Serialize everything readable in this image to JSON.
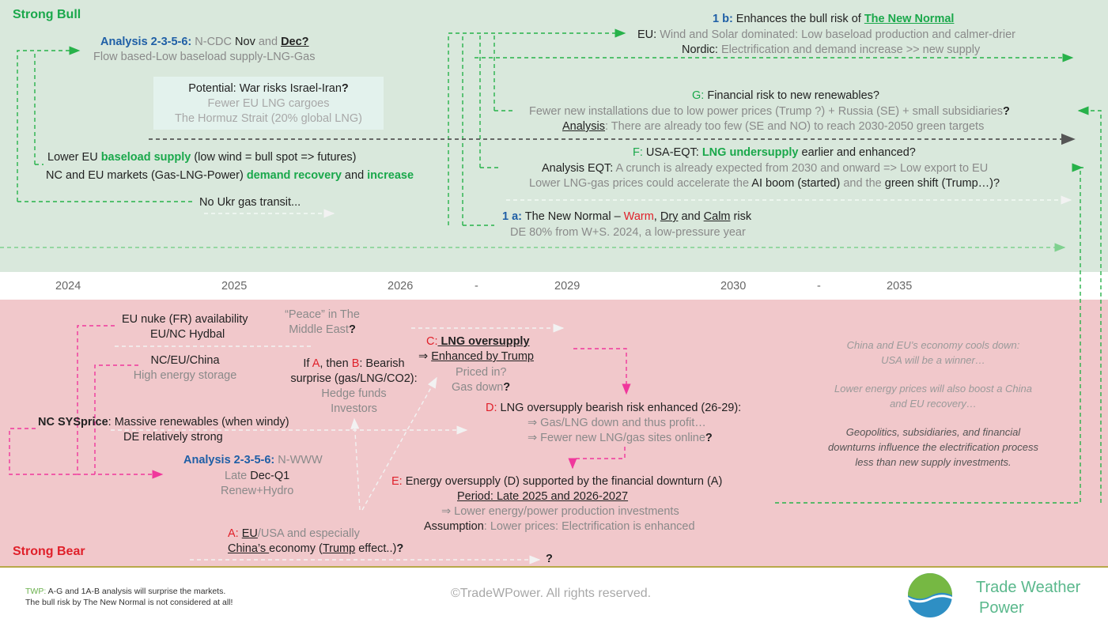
{
  "zones": {
    "bull_label": "Strong Bull",
    "bear_label": "Strong Bear"
  },
  "timeline": [
    "2024",
    "2025",
    "2026",
    "-",
    "2029",
    "2030",
    "-",
    "2035"
  ],
  "bull": {
    "analysis_ncdc": {
      "label": "Analysis 2-3-5-6:",
      "t1": " N-CDC ",
      "t2": "Nov",
      "t3": " and ",
      "t4": "Dec?",
      "line2": "Flow based-Low baseload supply-LNG-Gas"
    },
    "potential": {
      "line1": "Potential: War risks Israel-Iran",
      "q": "?",
      "line2": "Fewer EU LNG cargoes",
      "line3": "The Hormuz Strait (20% global LNG)"
    },
    "baseload": {
      "a": "Lower EU ",
      "b": "baseload supply",
      "c": " (low wind = bull spot =>  futures)",
      "d": "NC and EU markets (Gas-LNG-Power) ",
      "e": "demand recovery",
      "f": " and ",
      "g": "increase"
    },
    "ukr": "No Ukr gas transit...",
    "b1": {
      "label": "1 b:",
      "text": " Enhances the bull risk of ",
      "link": "The New Normal",
      "eu_label": "EU:",
      "eu_text": " Wind and Solar dominated: Low baseload production and calmer-drier",
      "nordic_label": "Nordic:",
      "nordic_text": " Electrification and demand increase >> new supply"
    },
    "g": {
      "label": "G:",
      "text": " Financial risk to new renewables?",
      "line2": "Fewer new installations due to low power prices (Trump ?) + Russia (SE) + small subsidiaries",
      "q": "?",
      "analysis": "Analysis",
      "line3": ": There are already too few (SE and NO) to reach 2030-2050 green targets"
    },
    "f": {
      "label": "F:",
      "t1": " USA-EQT: ",
      "t2": "LNG undersupply",
      "t3": " earlier and enhanced?",
      "l2a": "Analysis EQT:",
      "l2b": " A crunch is already expected from 2030 and onward => Low export to EU",
      "l3a": "Lower LNG-gas prices could accelerate the ",
      "l3b": "AI boom (started)",
      "l3c": " and the ",
      "l3d": "green shift (Trump…)?"
    },
    "a1": {
      "label": "1 a:",
      "t1": " The New Normal – ",
      "warm": "Warm",
      "t2": ", ",
      "dry": "Dry",
      "t3": " and ",
      "calm": "Calm",
      "t4": " risk",
      "line2": "DE 80% from W+S. 2024, a low-pressure year"
    }
  },
  "bear": {
    "nuke": {
      "line1": "EU nuke (FR) availability",
      "l2a": "EU/",
      "l2b": "NC Hydbal"
    },
    "peace": {
      "line1": "“Peace” in The",
      "line2a": "Middle East",
      "q": "?"
    },
    "storage": {
      "line1": "NC/EU/China",
      "line2": "High energy storage"
    },
    "ifab": {
      "a": "If ",
      "A": "A",
      "b": ", then ",
      "B": "B",
      "c": ": Bearish",
      "line2": "surprise (gas/LNG/CO2):",
      "line3": "Hedge funds",
      "line4": "Investors"
    },
    "c": {
      "label": "C:",
      "title": " LNG oversupply",
      "line2a": "⇒ ",
      "line2b": "Enhanced by Trump",
      "line3": "Priced in?",
      "line4a": "Gas down",
      "q": "?"
    },
    "nc": {
      "label": "NC SYSprice",
      "text": ": Massive renewables (when windy)",
      "line2": "DE relatively strong"
    },
    "d": {
      "label": "D:",
      "text": " LNG oversupply bearish risk enhanced (26-29):",
      "line2": "⇒ Gas/LNG down and thus profit…",
      "line3a": "⇒ Fewer new LNG/gas sites online",
      "q": "?"
    },
    "analysis_www": {
      "label": "Analysis 2-3-5-6:",
      "t1": " N-WWW",
      "line2a": "Late ",
      "line2b": "Dec-Q1",
      "line3": "Renew+Hydro"
    },
    "e": {
      "label": "E:",
      "text": " Energy oversupply (D) supported by the financial downturn (A)",
      "period": "Period: Late 2025 and 2026-2027",
      "line3": "⇒ Lower energy/power production investments",
      "assump": "Assumption",
      "assump_text": ": Lower prices: Electrification is enhanced"
    },
    "a": {
      "label": "A:",
      "sp": " ",
      "eu": "EU",
      "usa": "/USA and especially",
      "china": "China’s ",
      "economy": "economy (",
      "trump": "Trump",
      "effect": " effect..)",
      "q": "?"
    },
    "qmark": "?",
    "right": {
      "p1a": "China and EU’s economy cools down:",
      "p1b": "USA will be a winner…",
      "p2a": "Lower energy prices will also boost a China",
      "p2b": "and EU recovery…",
      "p3a": "Geopolitics, subsidiaries, and financial",
      "p3b": "downturns influence the electrification process",
      "p3c": "less than new supply investments."
    }
  },
  "footer": {
    "twp": "TWP:",
    "note1": " A-G and 1A-B analysis will surprise the markets.",
    "note2": "The bull risk by The New Normal is not considered at all!",
    "copyright": "©TradeWPower. All rights reserved.",
    "brand1": "Trade Weather",
    "brand2": "Power"
  },
  "colors": {
    "bull_bg": "#d9e8dc",
    "bear_bg": "#f1c8cb",
    "green_arrow": "#27b24a",
    "pink_arrow": "#f0379c",
    "brand": "#5ab88c"
  }
}
